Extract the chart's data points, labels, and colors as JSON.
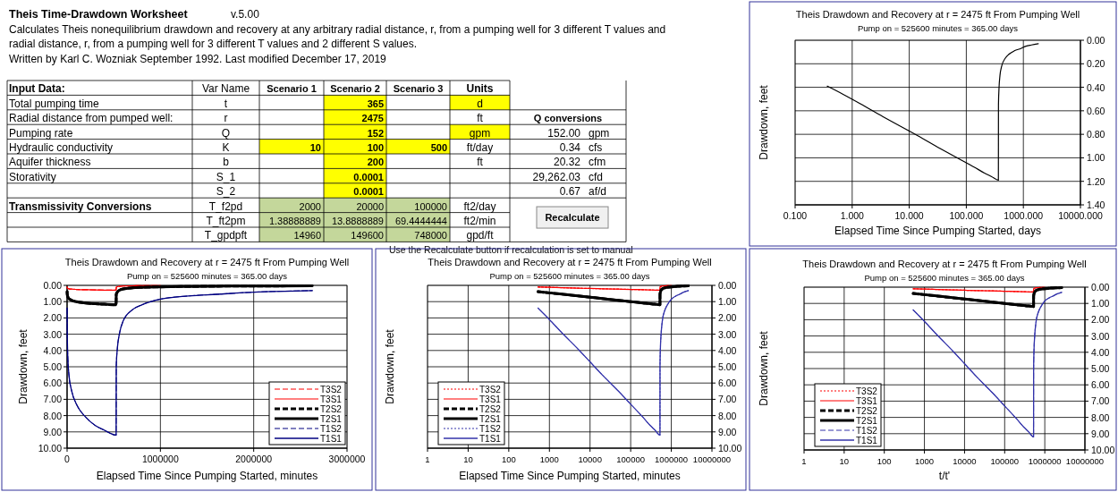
{
  "chart_data": [
    {
      "type": "other",
      "title": "Theis Time-Drawdown Worksheet",
      "annotations": [
        "v.5.00",
        "Calculates Theis nonequilibrium drawdown and recovery at any arbitrary radial distance, r, from a pumping well for 3 different T values and",
        "radial distance, r, from a pumping well for 3 different T values and 2 different S values.",
        "Written by Karl C. Wozniak September 1992.  Last modified December 17, 2019",
        "Input Data:",
        "Var Name",
        "Scenario 1",
        "Scenario 2",
        "Scenario 3",
        "Units",
        "Total pumping time",
        "t",
        "365",
        "d",
        "Radial distance from pumped well:",
        "r",
        "2475",
        "ft",
        "Q conversions",
        "Pumping rate",
        "Q",
        "152",
        "gpm",
        "152.00",
        "gpm",
        "Hydraulic conductivity",
        "K",
        "10",
        "100",
        "500",
        "ft/day",
        "0.34",
        "cfs",
        "Aquifer thickness",
        "b",
        "200",
        "ft",
        "20.32",
        "cfm",
        "Storativity",
        "S_1",
        "0.0001",
        "29,262.03",
        "cfd",
        "S_2",
        "0.0001",
        "0.67",
        "af/d",
        "Transmissivity Conversions",
        "T_f2pd",
        "2000",
        "20000",
        "100000",
        "ft2/day",
        "T_ft2pm",
        "1.38888889",
        "13.8888889",
        "69.4444444",
        "ft2/min",
        "Recalculate",
        "T_gpdpft",
        "14960",
        "149600",
        "748000",
        "gpd/ft",
        "Use the Recalculate button if recalculation is set to manual"
      ]
    },
    {
      "type": "line",
      "title": "Theis Drawdown and Recovery at r = 2475 ft From Pumping Well",
      "subtitle": "Pump on = 525600 minutes = 365.00 days",
      "xlabel": "Elapsed Time Since Pumping Started, days",
      "ylabel": "Drawdown, feet",
      "log": "x",
      "grid": true,
      "legend": false,
      "x": [
        0.365,
        0.694,
        1.389,
        3.472,
        6.944,
        13.89,
        34.72,
        69.44,
        138.9,
        208.3,
        277.8,
        365,
        366,
        375,
        388.9,
        416.7,
        486.1,
        555.6,
        694.4,
        902.8,
        1111,
        1389,
        1825
      ],
      "xlim": [
        0.1,
        10000
      ],
      "xticks": [
        {
          "value": 0.1,
          "label": "0.100"
        },
        {
          "value": 1,
          "label": "1.000"
        },
        {
          "value": 10,
          "label": "10.000"
        },
        {
          "value": 100,
          "label": "100.000"
        },
        {
          "value": 1000,
          "label": "1000.000"
        },
        {
          "value": 10000,
          "label": "10000.000"
        }
      ],
      "ylim": [
        1.4,
        0
      ],
      "yticks": [
        {
          "value": 0,
          "label": "0.00"
        },
        {
          "value": 0.2,
          "label": "0.20"
        },
        {
          "value": 0.4,
          "label": "0.40"
        },
        {
          "value": 0.6,
          "label": "0.60"
        },
        {
          "value": 0.8,
          "label": "0.80"
        },
        {
          "value": 1,
          "label": "1.00"
        },
        {
          "value": 1.2,
          "label": "1.20"
        },
        {
          "value": 1.4,
          "label": "1.40"
        }
      ],
      "series": [
        {
          "color": "#000000",
          "line_style": "solid",
          "values": [
            0.39,
            0.46,
            0.54,
            0.65,
            0.73,
            0.81,
            0.92,
            1.0,
            1.08,
            1.13,
            1.16,
            1.19,
            0.55,
            0.4,
            0.3,
            0.22,
            0.15,
            0.12,
            0.09,
            0.07,
            0.05,
            0.04,
            0.03
          ]
        }
      ]
    },
    {
      "type": "line",
      "title": "Theis Drawdown and Recovery at r = 2475 ft From Pumping Well",
      "subtitle": "Pump on = 525600 minutes = 365.00 days",
      "xlabel": "Elapsed Time Since Pumping Started, minutes",
      "ylabel": "Drawdown, feet",
      "grid": true,
      "legend": "bottom right",
      "x": [
        525.6,
        1000,
        2000,
        5000,
        10000,
        20000,
        50000,
        100000,
        200000,
        300000,
        400000,
        525600,
        527000,
        540000,
        560000,
        600000,
        700000,
        800000,
        1000000,
        1300000,
        1600000,
        2000000,
        2628000
      ],
      "xlim": [
        0,
        3000000
      ],
      "xticks": [
        0,
        1000000,
        2000000,
        3000000
      ],
      "ylim": [
        10,
        0
      ],
      "yticks": [
        {
          "value": 0,
          "label": "0.00"
        },
        {
          "value": 1,
          "label": "1.00"
        },
        {
          "value": 2,
          "label": "2.00"
        },
        {
          "value": 3,
          "label": "3.00"
        },
        {
          "value": 4,
          "label": "4.00"
        },
        {
          "value": 5,
          "label": "5.00"
        },
        {
          "value": 6,
          "label": "6.00"
        },
        {
          "value": 7,
          "label": "7.00"
        },
        {
          "value": 8,
          "label": "8.00"
        },
        {
          "value": 9,
          "label": "9.00"
        },
        {
          "value": 10,
          "label": "10.00"
        }
      ],
      "series": [
        {
          "name": "T3S2",
          "color": "#ff0000",
          "line_style": "dashed",
          "values": [
            0.1,
            0.12,
            0.14,
            0.17,
            0.19,
            0.21,
            0.23,
            0.25,
            0.27,
            0.28,
            0.29,
            0.3,
            0.12,
            0.08,
            0.06,
            0.04,
            0.03,
            0.02,
            0.02,
            null,
            null,
            null,
            null
          ]
        },
        {
          "name": "T3S1",
          "color": "#ff0000",
          "line_style": "solid",
          "values": [
            0.1,
            0.12,
            0.14,
            0.17,
            0.19,
            0.21,
            0.23,
            0.25,
            0.27,
            0.28,
            0.29,
            0.3,
            0.12,
            0.08,
            0.06,
            0.04,
            0.03,
            0.02,
            0.02,
            null,
            null,
            null,
            null
          ]
        },
        {
          "name": "T2S2",
          "color": "#000000",
          "line_style": "dashed",
          "values": [
            0.39,
            0.46,
            0.54,
            0.65,
            0.73,
            0.81,
            0.92,
            1.0,
            1.08,
            1.13,
            1.16,
            1.19,
            0.55,
            0.4,
            0.3,
            0.22,
            0.15,
            0.12,
            0.09,
            0.07,
            0.05,
            0.04,
            0.03
          ]
        },
        {
          "name": "T2S1",
          "color": "#000000",
          "line_style": "solid",
          "values": [
            0.39,
            0.46,
            0.54,
            0.65,
            0.73,
            0.81,
            0.92,
            1.0,
            1.08,
            1.13,
            1.16,
            1.19,
            0.55,
            0.4,
            0.3,
            0.22,
            0.15,
            0.12,
            0.09,
            0.07,
            0.05,
            0.04,
            0.03
          ]
        },
        {
          "name": "T1S2",
          "color": "#000080",
          "line_style": "dashed",
          "values": [
            1.4,
            2.1,
            2.9,
            3.9,
            4.7,
            5.5,
            6.5,
            7.3,
            8.1,
            8.6,
            8.9,
            9.2,
            5.0,
            3.8,
            3.0,
            2.2,
            1.5,
            1.2,
            0.85,
            0.65,
            0.55,
            0.42,
            0.32
          ]
        },
        {
          "name": "T1S1",
          "color": "#000080",
          "line_style": "solid",
          "values": [
            1.4,
            2.1,
            2.9,
            3.9,
            4.7,
            5.5,
            6.5,
            7.3,
            8.1,
            8.6,
            8.9,
            9.2,
            5.0,
            3.8,
            3.0,
            2.2,
            1.5,
            1.2,
            0.85,
            0.65,
            0.55,
            0.42,
            0.32
          ]
        }
      ]
    },
    {
      "type": "line",
      "title": "Theis Drawdown and Recovery at r = 2475 ft From Pumping Well",
      "subtitle": "Pump on = 525600 minutes = 365.00 days",
      "xlabel": "Elapsed Time Since Pumping Started, minutes",
      "ylabel": "Drawdown, feet",
      "log": "x",
      "grid": true,
      "legend": "bottom left",
      "x": [
        525.6,
        1000,
        2000,
        5000,
        10000,
        20000,
        50000,
        100000,
        200000,
        300000,
        400000,
        525600,
        527000,
        540000,
        560000,
        600000,
        700000,
        800000,
        1000000,
        1300000,
        1600000,
        2000000,
        2628000
      ],
      "xlim": [
        1,
        10000000
      ],
      "xticks": [
        1,
        10,
        100,
        1000,
        10000,
        100000,
        1000000,
        10000000
      ],
      "ylim": [
        10,
        0
      ],
      "yticks": [
        {
          "value": 0,
          "label": "0.00"
        },
        {
          "value": 1,
          "label": "1.00"
        },
        {
          "value": 2,
          "label": "2.00"
        },
        {
          "value": 3,
          "label": "3.00"
        },
        {
          "value": 4,
          "label": "4.00"
        },
        {
          "value": 5,
          "label": "5.00"
        },
        {
          "value": 6,
          "label": "6.00"
        },
        {
          "value": 7,
          "label": "7.00"
        },
        {
          "value": 8,
          "label": "8.00"
        },
        {
          "value": 9,
          "label": "9.00"
        },
        {
          "value": 10,
          "label": "10.00"
        }
      ],
      "series": [
        {
          "name": "T3S2",
          "color": "#ff0000",
          "line_style": "dotted",
          "values": [
            0.1,
            0.12,
            0.14,
            0.17,
            0.19,
            0.21,
            0.23,
            0.25,
            0.27,
            0.28,
            0.29,
            0.3,
            0.12,
            0.08,
            0.06,
            0.04,
            0.03,
            0.02,
            0.02,
            null,
            null,
            null,
            null
          ]
        },
        {
          "name": "T3S1",
          "color": "#ff0000",
          "line_style": "solid",
          "values": [
            0.1,
            0.12,
            0.14,
            0.17,
            0.19,
            0.21,
            0.23,
            0.25,
            0.27,
            0.28,
            0.29,
            0.3,
            0.12,
            0.08,
            0.06,
            0.04,
            0.03,
            0.02,
            0.02,
            null,
            null,
            null,
            null
          ]
        },
        {
          "name": "T2S2",
          "color": "#000000",
          "line_style": "dashed",
          "values": [
            0.39,
            0.46,
            0.54,
            0.65,
            0.73,
            0.81,
            0.92,
            1.0,
            1.08,
            1.13,
            1.16,
            1.19,
            0.55,
            0.4,
            0.3,
            0.22,
            0.15,
            0.12,
            0.09,
            0.07,
            0.05,
            0.04,
            0.03
          ]
        },
        {
          "name": "T2S1",
          "color": "#000000",
          "line_style": "solid",
          "values": [
            0.39,
            0.46,
            0.54,
            0.65,
            0.73,
            0.81,
            0.92,
            1.0,
            1.08,
            1.13,
            1.16,
            1.19,
            0.55,
            0.4,
            0.3,
            0.22,
            0.15,
            0.12,
            0.09,
            0.07,
            0.05,
            0.04,
            0.03
          ]
        },
        {
          "name": "T1S2",
          "color": "#3333aa",
          "line_style": "dotted",
          "values": [
            1.4,
            2.1,
            2.9,
            3.9,
            4.7,
            5.5,
            6.5,
            7.3,
            8.1,
            8.6,
            8.9,
            9.2,
            5.0,
            3.8,
            3.0,
            2.2,
            1.5,
            1.2,
            0.85,
            0.65,
            0.55,
            0.42,
            0.32
          ]
        },
        {
          "name": "T1S1",
          "color": "#3333aa",
          "line_style": "solid",
          "values": [
            1.4,
            2.1,
            2.9,
            3.9,
            4.7,
            5.5,
            6.5,
            7.3,
            8.1,
            8.6,
            8.9,
            9.2,
            5.0,
            3.8,
            3.0,
            2.2,
            1.5,
            1.2,
            0.85,
            0.65,
            0.55,
            0.42,
            0.32
          ]
        }
      ]
    },
    {
      "type": "line",
      "title": "Theis Drawdown and Recovery at r = 2475 ft From Pumping Well",
      "subtitle": "Pump on = 525600 minutes = 365.00 days",
      "xlabel": "t/t'",
      "ylabel": "Drawdown, feet",
      "log": "x",
      "grid": true,
      "legend": "bottom left",
      "x": [
        525.6,
        1000,
        2000,
        5000,
        10000,
        20000,
        50000,
        100000,
        200000,
        300000,
        400000,
        525600,
        527000,
        540000,
        560000,
        600000,
        700000,
        800000,
        1000000,
        1300000,
        1600000,
        2000000,
        2628000
      ],
      "xlim": [
        1,
        10000000
      ],
      "xticks": [
        1,
        10,
        100,
        1000,
        10000,
        100000,
        1000000,
        10000000
      ],
      "ylim": [
        10,
        0
      ],
      "yticks": [
        {
          "value": 0,
          "label": "0.00"
        },
        {
          "value": 1,
          "label": "1.00"
        },
        {
          "value": 2,
          "label": "2.00"
        },
        {
          "value": 3,
          "label": "3.00"
        },
        {
          "value": 4,
          "label": "4.00"
        },
        {
          "value": 5,
          "label": "5.00"
        },
        {
          "value": 6,
          "label": "6.00"
        },
        {
          "value": 7,
          "label": "7.00"
        },
        {
          "value": 8,
          "label": "8.00"
        },
        {
          "value": 9,
          "label": "9.00"
        },
        {
          "value": 10,
          "label": "10.00"
        }
      ],
      "series": [
        {
          "name": "T3S2",
          "color": "#ff0000",
          "line_style": "dotted",
          "values": [
            0.1,
            0.12,
            0.14,
            0.17,
            0.19,
            0.21,
            0.23,
            0.25,
            0.27,
            0.28,
            0.29,
            0.3,
            0.12,
            0.08,
            0.06,
            0.04,
            0.03,
            0.02,
            0.02,
            null,
            null,
            null,
            null
          ]
        },
        {
          "name": "T3S1",
          "color": "#ff0000",
          "line_style": "solid",
          "values": [
            0.1,
            0.12,
            0.14,
            0.17,
            0.19,
            0.21,
            0.23,
            0.25,
            0.27,
            0.28,
            0.29,
            0.3,
            0.12,
            0.08,
            0.06,
            0.04,
            0.03,
            0.02,
            0.02,
            null,
            null,
            null,
            null
          ]
        },
        {
          "name": "T2S2",
          "color": "#000000",
          "line_style": "dashed",
          "values": [
            0.39,
            0.46,
            0.54,
            0.65,
            0.73,
            0.81,
            0.92,
            1.0,
            1.08,
            1.13,
            1.16,
            1.19,
            0.55,
            0.4,
            0.3,
            0.22,
            0.15,
            0.12,
            0.09,
            0.07,
            0.05,
            0.04,
            0.03
          ]
        },
        {
          "name": "T2S1",
          "color": "#000000",
          "line_style": "solid",
          "values": [
            0.39,
            0.46,
            0.54,
            0.65,
            0.73,
            0.81,
            0.92,
            1.0,
            1.08,
            1.13,
            1.16,
            1.19,
            0.55,
            0.4,
            0.3,
            0.22,
            0.15,
            0.12,
            0.09,
            0.07,
            0.05,
            0.04,
            0.03
          ]
        },
        {
          "name": "T1S2",
          "color": "#3333aa",
          "line_style": "dashed",
          "values": [
            1.4,
            2.1,
            2.9,
            3.9,
            4.7,
            5.5,
            6.5,
            7.3,
            8.1,
            8.6,
            8.9,
            9.2,
            5.0,
            3.8,
            3.0,
            2.2,
            1.5,
            1.2,
            0.85,
            0.65,
            0.55,
            0.42,
            0.32
          ]
        },
        {
          "name": "T1S1",
          "color": "#3333aa",
          "line_style": "solid",
          "values": [
            1.4,
            2.1,
            2.9,
            3.9,
            4.7,
            5.5,
            6.5,
            7.3,
            8.1,
            8.6,
            8.9,
            9.2,
            5.0,
            3.8,
            3.0,
            2.2,
            1.5,
            1.2,
            0.85,
            0.65,
            0.55,
            0.42,
            0.32
          ]
        }
      ]
    }
  ]
}
